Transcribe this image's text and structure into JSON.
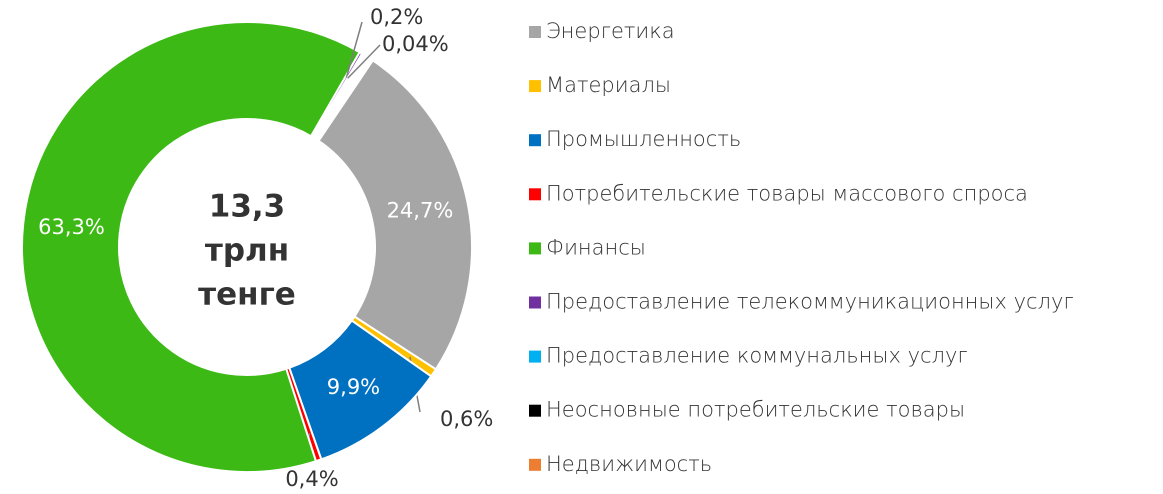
{
  "chart_data": {
    "type": "donut",
    "center_text": [
      "13,3",
      "трлн",
      "тенге"
    ],
    "categories": [
      "Энергетика",
      "Материалы",
      "Промышленность",
      "Потребительские товары массового спроса",
      "Финансы",
      "Предоставление телекоммуникационных услуг",
      "Предоставление коммунальных услуг",
      "Неосновные потребительские товары",
      "Недвижимость"
    ],
    "values": [
      24.7,
      0.6,
      9.9,
      0.4,
      63.3,
      0.2,
      0.04,
      0,
      0
    ],
    "value_labels": [
      "24,7%",
      "0,6%",
      "9,9%",
      "0,4%",
      "63,3%",
      "0,2%",
      "0,04%",
      null,
      null
    ],
    "colors": [
      "#a6a6a6",
      "#ffc000",
      "#0070c0",
      "#ff0000",
      "#3cb914",
      "#7030a0",
      "#00b0f0",
      "#000000",
      "#ed7d31"
    ],
    "legend": "right"
  }
}
